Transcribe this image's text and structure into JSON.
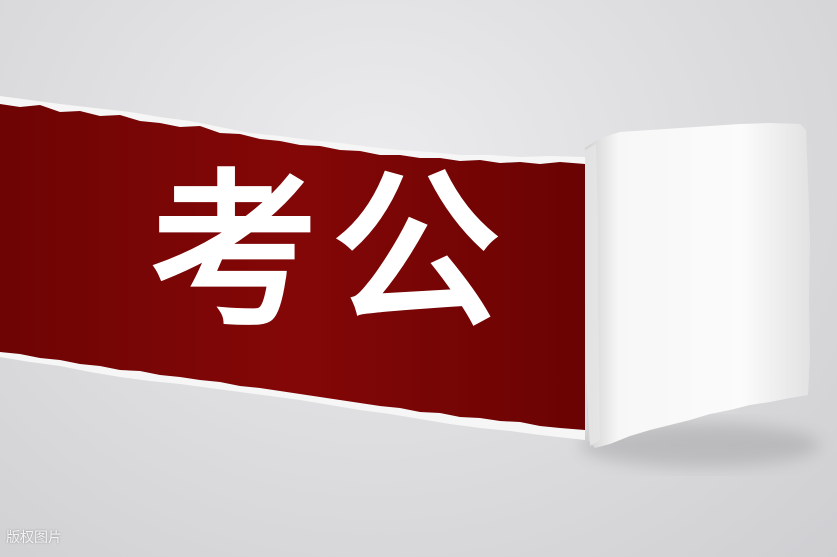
{
  "image": {
    "headline": "考公",
    "watermark": "版权图片"
  },
  "colors": {
    "background_paper": "#dcdcde",
    "torn_reveal": "#7e0606",
    "curl_paper": "#f4f4f4",
    "text": "#ffffff"
  }
}
